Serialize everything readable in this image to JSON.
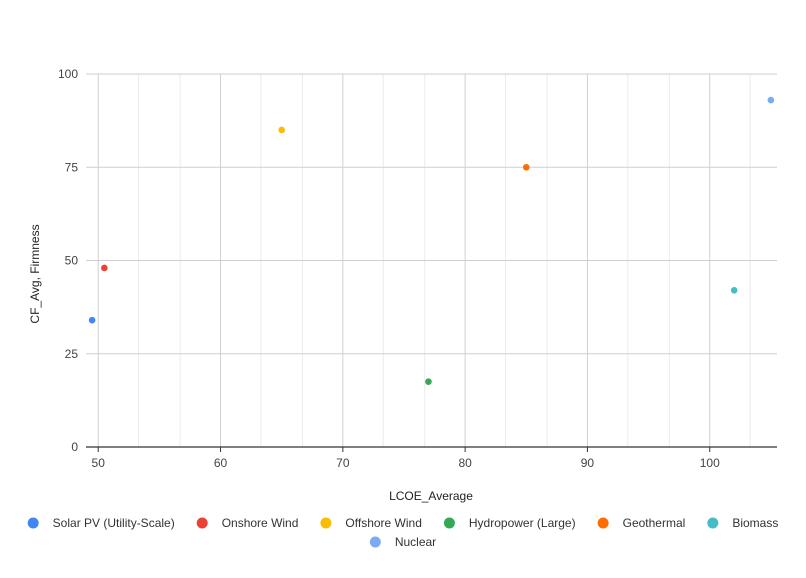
{
  "chart_data": {
    "type": "scatter",
    "title": "",
    "xlabel": "LCOE_Average",
    "ylabel": "CF_Avg, Firmness",
    "xlim": [
      49,
      105.5
    ],
    "ylim": [
      0,
      100
    ],
    "x_ticks": [
      50,
      60,
      70,
      80,
      90,
      100
    ],
    "x_minor_ticks": [
      53.3,
      56.7,
      63.3,
      66.7,
      73.3,
      76.7,
      83.3,
      86.7,
      93.3,
      96.7,
      103.3
    ],
    "y_ticks": [
      0,
      25,
      50,
      75,
      100
    ],
    "grid": true,
    "legend_position": "bottom",
    "series": [
      {
        "name": "Solar PV (Utility-Scale)",
        "color": "#4285f4",
        "points": [
          {
            "x": 49.5,
            "y": 34
          }
        ]
      },
      {
        "name": "Onshore Wind",
        "color": "#ea4335",
        "points": [
          {
            "x": 50.5,
            "y": 48
          }
        ]
      },
      {
        "name": "Offshore Wind",
        "color": "#fbbc04",
        "points": [
          {
            "x": 65,
            "y": 85
          }
        ]
      },
      {
        "name": "Hydropower (Large)",
        "color": "#34a853",
        "points": [
          {
            "x": 77,
            "y": 17.5
          }
        ]
      },
      {
        "name": "Geothermal",
        "color": "#ff6d01",
        "points": [
          {
            "x": 85,
            "y": 75
          }
        ]
      },
      {
        "name": "Biomass",
        "color": "#46bdc6",
        "points": [
          {
            "x": 102,
            "y": 42
          }
        ]
      },
      {
        "name": "Nuclear",
        "color": "#7baaf7",
        "points": [
          {
            "x": 105,
            "y": 93
          }
        ]
      }
    ]
  }
}
